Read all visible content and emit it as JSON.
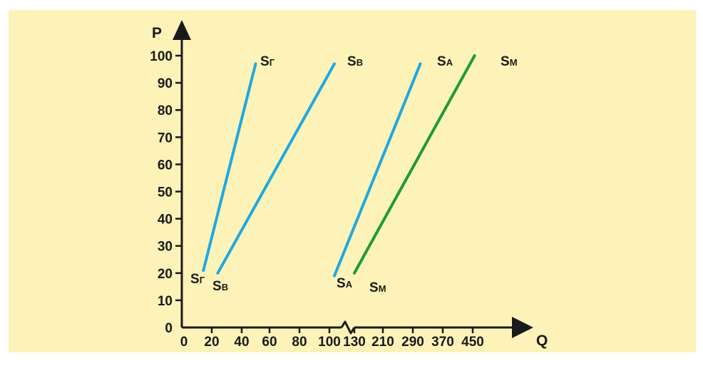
{
  "colors": {
    "panel_background": "#fdf3b8",
    "axis": "#1a1a1a",
    "blue_series": "#20a8e0",
    "green_series": "#1f9a3a"
  },
  "chart_data": {
    "type": "line",
    "ylabel": "P",
    "xlabel": "Q",
    "y_ticks": [
      "0",
      "10",
      "20",
      "30",
      "40",
      "50",
      "60",
      "70",
      "80",
      "90",
      "100"
    ],
    "x_ticks": [
      "0",
      "20",
      "40",
      "60",
      "80",
      "100",
      "130",
      "210",
      "290",
      "370",
      "450"
    ],
    "x_axis_break_between": [
      "100",
      "130"
    ],
    "ylim": [
      0,
      100
    ],
    "grid": false,
    "legend": "none",
    "series": [
      {
        "name": "SГ",
        "label_letter": "S",
        "label_sub": "Г",
        "color": "#20a8e0",
        "points": [
          {
            "x": 14,
            "y": 21
          },
          {
            "x": 50,
            "y": 97
          }
        ]
      },
      {
        "name": "SВ",
        "label_letter": "S",
        "label_sub": "В",
        "color": "#20a8e0",
        "points": [
          {
            "x": 24,
            "y": 20
          },
          {
            "x": 106,
            "y": 97
          }
        ]
      },
      {
        "name": "SА",
        "label_letter": "S",
        "label_sub": "А",
        "color": "#20a8e0",
        "points": [
          {
            "x": 106,
            "y": 19
          },
          {
            "x": 310,
            "y": 97
          }
        ]
      },
      {
        "name": "SМ",
        "label_letter": "S",
        "label_sub": "М",
        "color": "#1f9a3a",
        "points": [
          {
            "x": 130,
            "y": 20
          },
          {
            "x": 455,
            "y": 100
          }
        ]
      }
    ]
  }
}
